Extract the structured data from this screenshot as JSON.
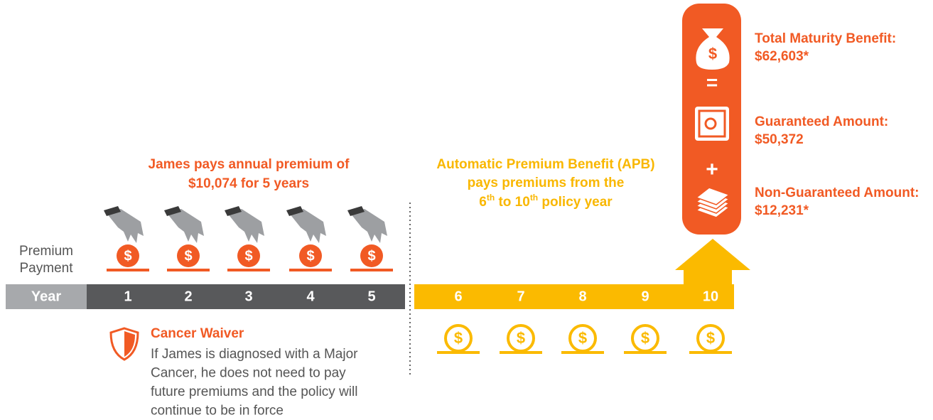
{
  "left_heading": [
    "James pays annual premium of",
    "$10,074 for 5 years"
  ],
  "apb_heading": {
    "line1": "Automatic Premium Benefit (APB)",
    "line2": "pays premiums from the",
    "line3": [
      "6",
      "th",
      " to 10",
      "th",
      " policy year"
    ]
  },
  "row_label": [
    "Premium",
    "Payment"
  ],
  "timeline": {
    "label": "Year",
    "years": [
      1,
      2,
      3,
      4,
      5,
      6,
      7,
      8,
      9,
      10
    ]
  },
  "icons": {
    "coin_symbol": "$",
    "equals": "=",
    "plus": "+"
  },
  "cancer_waiver": {
    "title": "Cancer Waiver",
    "body": [
      "If James is diagnosed with a Major",
      "Cancer, he does not need to pay",
      "future premiums and the policy will",
      "continue to be in force"
    ]
  },
  "benefits": [
    {
      "label": "Total Maturity Benefit:",
      "amount": "$62,603*"
    },
    {
      "label": "Guaranteed Amount:",
      "amount": "$50,372"
    },
    {
      "label": "Non-Guaranteed Amount:",
      "amount": "$12,231*"
    }
  ]
}
